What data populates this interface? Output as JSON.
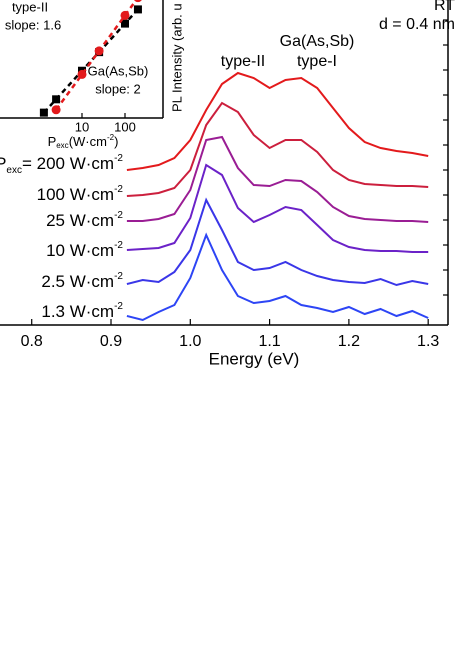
{
  "chart_data": [
    {
      "type": "line",
      "x_label": "Energy (eV)",
      "annotations": [
        "RT",
        "d = 0.4 nm",
        "type-II",
        "Ga(As,Sb)",
        "type-I"
      ],
      "x": [
        0.92,
        0.94,
        0.96,
        0.98,
        1.0,
        1.02,
        1.04,
        1.06,
        1.08,
        1.1,
        1.12,
        1.14,
        1.16,
        1.18,
        1.2,
        1.22,
        1.24,
        1.26,
        1.28,
        1.3
      ],
      "xlim": [
        0.76,
        1.325
      ],
      "xticks": [
        {
          "value": 0.8,
          "label": "0.8"
        },
        0.9,
        {
          "value": 1.0,
          "label": "1.0"
        },
        1.1,
        1.2,
        1.3
      ],
      "ylim": [
        0,
        32.5
      ],
      "yticks": [
        3,
        5.5,
        8,
        10.5,
        13,
        15.5,
        18,
        20.5,
        23,
        25.5,
        28,
        30.5
      ],
      "series": [
        {
          "name_prefix": "P",
          "name_sub": "exc",
          "name": "= 200 W·cm",
          "name_sup": "-2",
          "color": "#e31a1c",
          "values": [
            15.5,
            15.7,
            16,
            16.7,
            18.5,
            21.5,
            24.1,
            25.2,
            24.7,
            23.7,
            24.5,
            24.7,
            23.7,
            21.7,
            19.7,
            18.3,
            17.7,
            17.4,
            17.2,
            16.9
          ]
        },
        {
          "name": "100 W·cm",
          "name_sup": "-2",
          "color": "#cc1f3d",
          "values": [
            12.9,
            13,
            13.2,
            13.7,
            15.5,
            20,
            22.2,
            21.3,
            19,
            17.7,
            18.5,
            18.5,
            17.3,
            15.5,
            14.5,
            14.1,
            14,
            13.9,
            13.9,
            13.8
          ]
        },
        {
          "name": "25 W·cm",
          "name_sup": "-2",
          "color": "#9a1d94",
          "values": [
            10.4,
            10.4,
            10.6,
            11.1,
            13.5,
            18.5,
            18.8,
            15.7,
            14,
            13.9,
            14.5,
            14.4,
            13.3,
            11.8,
            10.9,
            10.6,
            10.5,
            10.4,
            10.4,
            10.3
          ]
        },
        {
          "name": "10 W·cm",
          "name_sup": "-2",
          "color": "#6b22c8",
          "values": [
            7.5,
            7.6,
            7.7,
            8.2,
            10.7,
            16,
            15,
            11.7,
            10.3,
            11,
            11.8,
            11.5,
            10,
            8.5,
            7.8,
            7.5,
            7.4,
            7.4,
            7.3,
            7.3
          ]
        },
        {
          "name": "2.5 W·cm",
          "name_sup": "-2",
          "color": "#3a36e8",
          "values": [
            4.1,
            4.5,
            4.3,
            5.3,
            7.5,
            12.5,
            9.5,
            6.3,
            5.5,
            5.7,
            6.3,
            5.5,
            4.9,
            4.5,
            4.3,
            4.2,
            4.6,
            4,
            4.4,
            4.1
          ]
        },
        {
          "name": "1.3 W·cm",
          "name_sup": "-2",
          "color": "#2d45f5",
          "values": [
            0.9,
            0.5,
            1.3,
            2,
            4.7,
            9,
            5.5,
            2.9,
            2.2,
            2.4,
            2.9,
            2,
            1.7,
            1.3,
            1.8,
            1.1,
            1.6,
            0.9,
            1.4,
            0.7
          ]
        }
      ]
    },
    {
      "type": "scatter",
      "x_label": [
        "P",
        "exc",
        "(W·cm",
        "-2",
        ")"
      ],
      "y_label": "PL Intensity (arb. u",
      "log_x": true,
      "log_y": true,
      "xlim": [
        0.124,
        765
      ],
      "xticks": [
        10,
        100
      ],
      "ylim": [
        1,
        10000
      ],
      "series": [
        {
          "name": "type-II",
          "annotation": "slope: 1.6",
          "color": "#000000",
          "marker": "square",
          "x": [
            1.3,
            2.5,
            10,
            25,
            100,
            200
          ],
          "values": [
            1.52,
            4.3,
            40,
            171,
            1585,
            4800
          ]
        },
        {
          "name": "Ga(As,Sb)",
          "annotation": "slope: 2",
          "color": "#e31a1c",
          "marker": "circle",
          "x": [
            2.5,
            10,
            25,
            100,
            200
          ],
          "values": [
            1.9,
            30,
            188,
            3000,
            12000
          ]
        }
      ]
    }
  ]
}
